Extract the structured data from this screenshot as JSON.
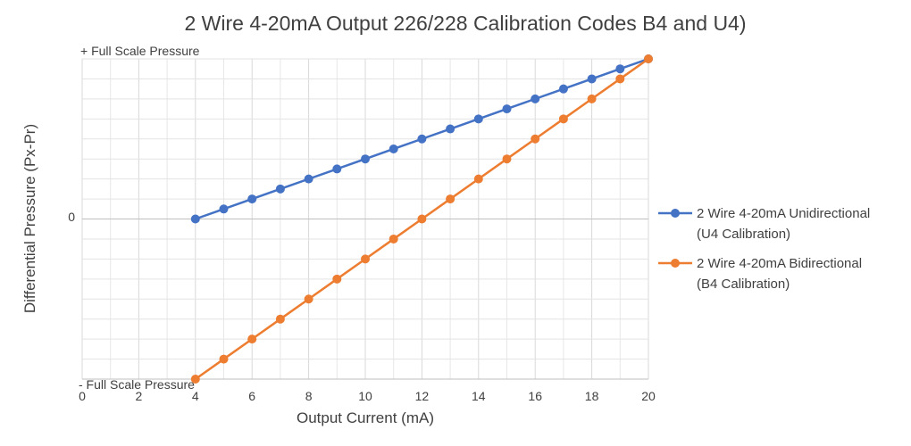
{
  "chart_data": {
    "type": "line",
    "title": "2 Wire 4-20mA Output 226/228 Calibration Codes B4 and U4)",
    "xlabel": "Output Current (mA)",
    "ylabel": "Differential Pressure (Px-Pr)",
    "xlim": [
      0,
      20
    ],
    "x_ticks": [
      "0",
      "2",
      "4",
      "6",
      "8",
      "10",
      "12",
      "14",
      "16",
      "18",
      "20"
    ],
    "ylim": [
      -1,
      1
    ],
    "y_tick_labels": {
      "top": "+ Full Scale Pressure",
      "zero": "0",
      "bottom": "- Full Scale Pressure"
    },
    "grid": true,
    "legend_position": "right",
    "series": [
      {
        "name_line1": "2 Wire 4-20mA Unidirectional",
        "name_line2": "(U4 Calibration)",
        "color": "#4472C4",
        "x": [
          4,
          5,
          6,
          7,
          8,
          9,
          10,
          11,
          12,
          13,
          14,
          15,
          16,
          17,
          18,
          19,
          20
        ],
        "y": [
          0,
          0.0625,
          0.125,
          0.1875,
          0.25,
          0.3125,
          0.375,
          0.4375,
          0.5,
          0.5625,
          0.625,
          0.6875,
          0.75,
          0.8125,
          0.875,
          0.9375,
          1
        ]
      },
      {
        "name_line1": "2 Wire 4-20mA Bidirectional",
        "name_line2": "(B4 Calibration)",
        "color": "#ED7D31",
        "x": [
          4,
          5,
          6,
          7,
          8,
          9,
          10,
          11,
          12,
          13,
          14,
          15,
          16,
          17,
          18,
          19,
          20
        ],
        "y": [
          -1,
          -0.875,
          -0.75,
          -0.625,
          -0.5,
          -0.375,
          -0.25,
          -0.125,
          0,
          0.125,
          0.25,
          0.375,
          0.5,
          0.625,
          0.75,
          0.875,
          1
        ]
      }
    ]
  }
}
